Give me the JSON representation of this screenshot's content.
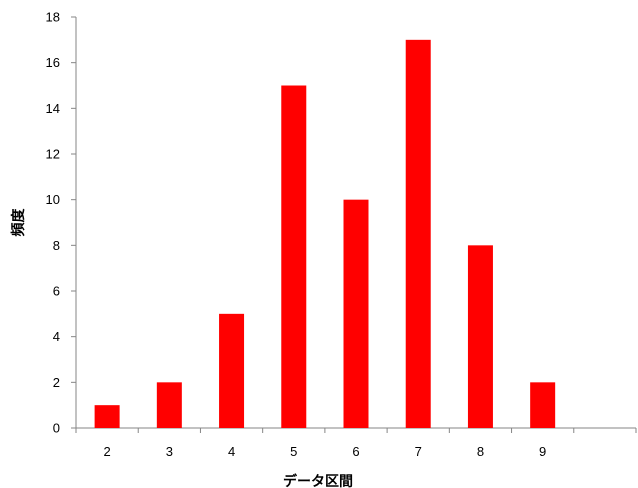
{
  "chart_data": {
    "type": "bar",
    "categories": [
      "2",
      "3",
      "4",
      "5",
      "6",
      "7",
      "8",
      "9",
      ""
    ],
    "values": [
      1,
      2,
      5,
      15,
      10,
      17,
      8,
      2,
      0
    ],
    "xlabel": "データ区間",
    "ylabel": "頻度",
    "ylim": [
      0,
      18
    ],
    "yticks": [
      0,
      2,
      4,
      6,
      8,
      10,
      12,
      14,
      16,
      18
    ],
    "grid": false,
    "legend": "none",
    "bar_color": "#ff0000",
    "axis_color": "#868686"
  }
}
